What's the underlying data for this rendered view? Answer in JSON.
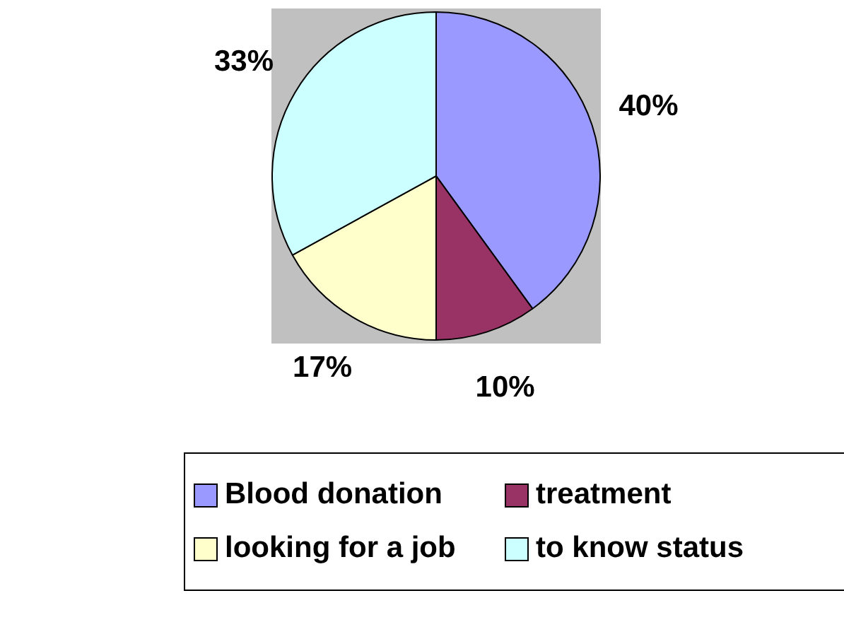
{
  "chart_data": {
    "type": "pie",
    "categories": [
      "Blood donation",
      "treatment",
      "looking for a job",
      "to know status"
    ],
    "values": [
      40,
      10,
      17,
      33
    ],
    "value_labels": [
      "40%",
      "10%",
      "17%",
      "33%"
    ],
    "colors": [
      "#9999ff",
      "#993366",
      "#ffffcc",
      "#ccffff"
    ],
    "legend": "bottom"
  }
}
